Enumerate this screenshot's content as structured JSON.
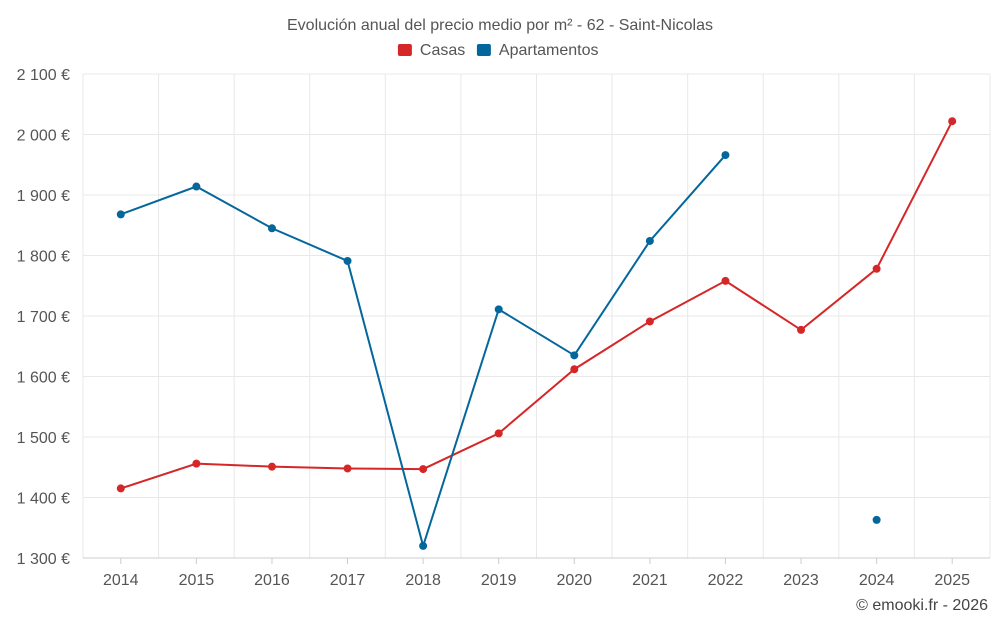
{
  "chart_data": {
    "type": "line",
    "title": "Evolución anual del precio medio por m² - 62 - Saint-Nicolas",
    "categories": [
      "2014",
      "2015",
      "2016",
      "2017",
      "2018",
      "2019",
      "2020",
      "2021",
      "2022",
      "2023",
      "2024",
      "2025"
    ],
    "ylim": [
      1300,
      2100
    ],
    "yticks": [
      1300,
      1400,
      1500,
      1600,
      1700,
      1800,
      1900,
      2000,
      2100
    ],
    "ytick_labels": [
      "1 300 €",
      "1 400 €",
      "1 500 €",
      "1 600 €",
      "1 700 €",
      "1 800 €",
      "1 900 €",
      "2 000 €",
      "2 100 €"
    ],
    "grid": true,
    "legend_position": "top-center",
    "series": [
      {
        "name": "Casas",
        "color": "#d62728",
        "values": [
          1415,
          1456,
          1451,
          1448,
          1447,
          1506,
          1612,
          1691,
          1758,
          1677,
          1778,
          2022
        ]
      },
      {
        "name": "Apartamentos",
        "color": "#04679c",
        "values": [
          1868,
          1914,
          1845,
          1791,
          1320,
          1711,
          1635,
          1824,
          1966,
          null,
          1363,
          null
        ]
      }
    ]
  },
  "credit": "© emooki.fr - 2026"
}
